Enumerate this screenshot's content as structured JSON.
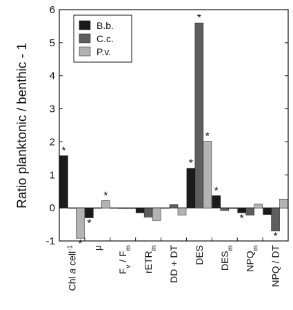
{
  "chart_data": {
    "type": "bar",
    "ylabel": "Ratio planktonic / benthic - 1",
    "ylim": [
      -1,
      6
    ],
    "yticks": [
      -1,
      0,
      1,
      2,
      3,
      4,
      5,
      6
    ],
    "legend_position": "top-left",
    "categories": [
      {
        "base": "Chl ",
        "italic": "a",
        "rest": " cell",
        "sup": "-1"
      },
      {
        "base": "μ"
      },
      {
        "base": "F",
        "sub": "v",
        "rest": " / F",
        "sub2": "m"
      },
      {
        "base": "rETR",
        "sub": "m"
      },
      {
        "base": "DD + DT"
      },
      {
        "base": "DES"
      },
      {
        "base": "DES",
        "sub": "m"
      },
      {
        "base": "NPQ",
        "sub": "m"
      },
      {
        "base": "NPQ / DT"
      }
    ],
    "series": [
      {
        "name": "B.b.",
        "color": "#1b1b1b",
        "values": [
          1.58,
          -0.3,
          0.0,
          -0.15,
          0.0,
          1.2,
          0.37,
          -0.15,
          -0.2
        ],
        "significant": [
          true,
          true,
          false,
          false,
          false,
          true,
          true,
          true,
          false
        ]
      },
      {
        "name": "C.c.",
        "color": "#5e5e5e",
        "values": [
          0.0,
          0.0,
          -0.02,
          -0.28,
          0.1,
          5.6,
          -0.08,
          -0.22,
          -0.7
        ],
        "significant": [
          false,
          false,
          false,
          false,
          false,
          true,
          false,
          false,
          true
        ]
      },
      {
        "name": "P.v.",
        "color": "#b3b3b3",
        "values": [
          -0.92,
          0.22,
          -0.03,
          -0.38,
          -0.22,
          2.02,
          -0.03,
          0.12,
          0.27
        ],
        "significant": [
          true,
          true,
          false,
          false,
          false,
          true,
          false,
          false,
          false
        ]
      }
    ],
    "significance_marker": "*"
  }
}
